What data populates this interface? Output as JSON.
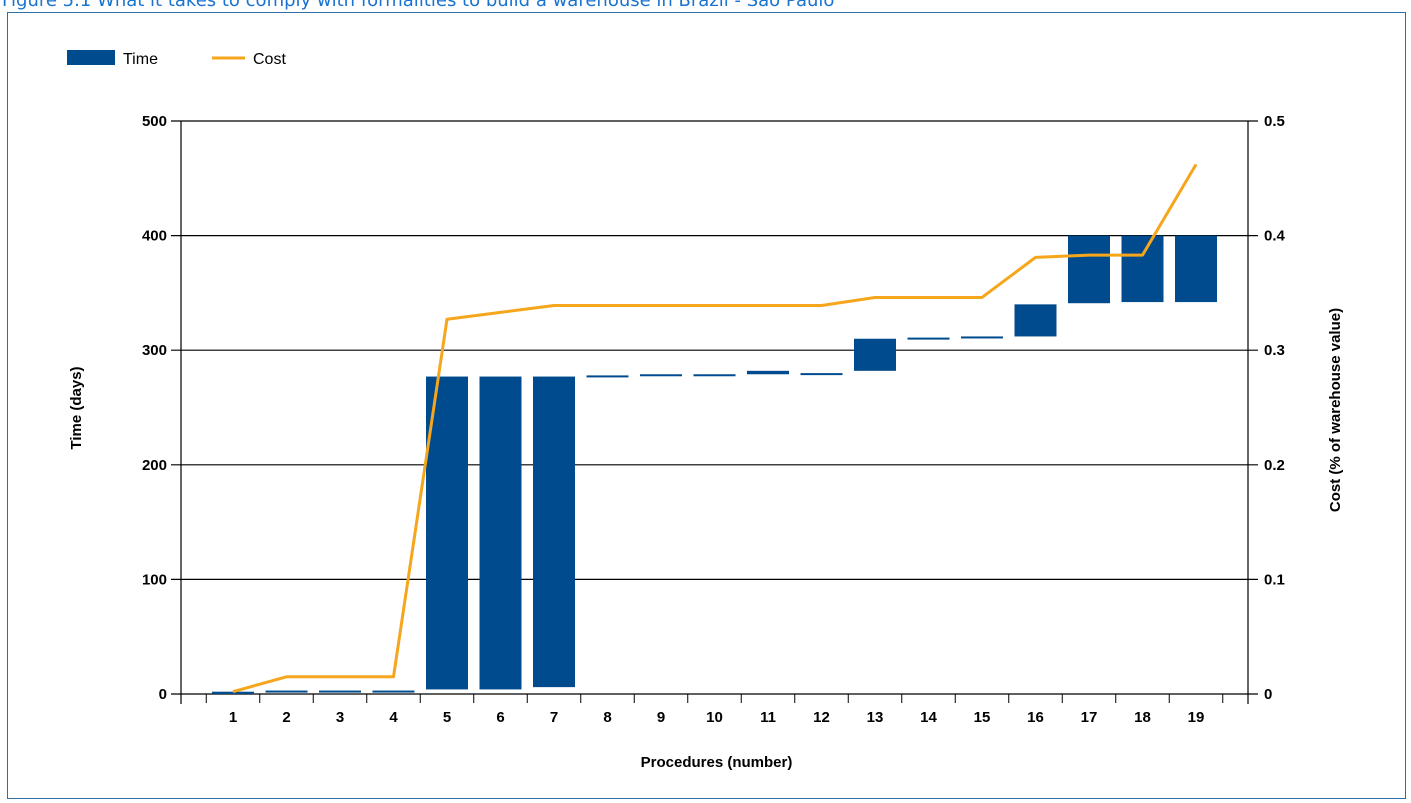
{
  "figure": {
    "title": "Figure 5.1 What it takes to comply with formalities to build a warehouse in Brazil - São Paulo"
  },
  "colors": {
    "time": "#004b8d",
    "cost": "#f5a61d",
    "frame": "#2d6ea5",
    "title": "#1a73d1"
  },
  "chart_data": {
    "type": "bar",
    "subtype": "waterfall-with-line",
    "title": "",
    "xlabel": "Procedures (number)",
    "ylabel": "Time (days)",
    "y2label": "Cost (% of warehouse value)",
    "categories": [
      "1",
      "2",
      "3",
      "4",
      "5",
      "6",
      "7",
      "8",
      "9",
      "10",
      "11",
      "12",
      "13",
      "14",
      "15",
      "16",
      "17",
      "18",
      "19"
    ],
    "ylim": [
      0,
      500
    ],
    "y2lim": [
      0,
      0.5
    ],
    "yticks": [
      "0",
      "100",
      "200",
      "300",
      "400",
      "500"
    ],
    "y2ticks": [
      "0",
      "0.1",
      "0.2",
      "0.3",
      "0.4",
      "0.5"
    ],
    "grid": true,
    "legend_position": "top-left",
    "series": [
      {
        "name": "Time",
        "kind": "floating-bar",
        "axis": "left",
        "start": [
          0,
          2,
          2,
          2,
          4,
          4,
          6,
          277,
          278,
          278,
          279,
          279,
          282,
          310,
          311,
          312,
          341,
          342,
          342
        ],
        "end": [
          2,
          3,
          3,
          3,
          277,
          277,
          277,
          278,
          279,
          279,
          282,
          280,
          310,
          311,
          312,
          340,
          400,
          400,
          400
        ]
      },
      {
        "name": "Cost",
        "kind": "line",
        "axis": "right",
        "values": [
          0.002,
          0.015,
          0.015,
          0.015,
          0.327,
          0.333,
          0.339,
          0.339,
          0.339,
          0.339,
          0.339,
          0.339,
          0.346,
          0.346,
          0.346,
          0.381,
          0.383,
          0.383,
          0.462
        ]
      }
    ]
  }
}
